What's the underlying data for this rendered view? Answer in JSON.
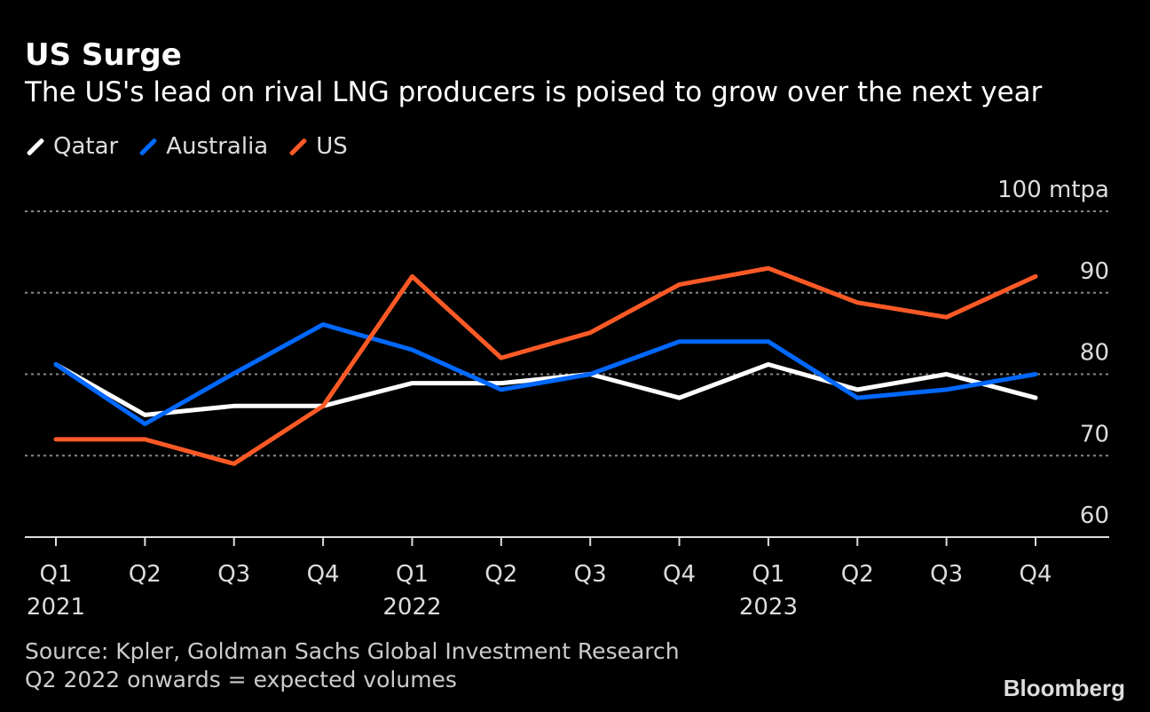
{
  "chart_data": {
    "type": "line",
    "title": "US Surge",
    "subtitle": "The US's lead on rival LNG producers is poised to grow over the next year",
    "x": [
      "Q1",
      "Q2",
      "Q3",
      "Q4",
      "Q1",
      "Q2",
      "Q3",
      "Q4",
      "Q1",
      "Q2",
      "Q3",
      "Q4"
    ],
    "year_labels": {
      "0": "2021",
      "4": "2022",
      "8": "2023"
    },
    "yticks": [
      60,
      70,
      80,
      90,
      100
    ],
    "yunit": "mtpa",
    "ylim": [
      60,
      100
    ],
    "grid": true,
    "legend_placement": "top-left",
    "series": [
      {
        "name": "Qatar",
        "color": "#ffffff",
        "values": [
          81.2,
          75.0,
          76.1,
          76.1,
          78.9,
          78.9,
          80.0,
          77.1,
          81.2,
          78.1,
          80.0,
          77.1
        ]
      },
      {
        "name": "Australia",
        "color": "#0068ff",
        "values": [
          81.2,
          73.9,
          80.1,
          86.1,
          83.0,
          78.1,
          80.0,
          84.0,
          84.0,
          77.1,
          78.1,
          80.0
        ]
      },
      {
        "name": "US",
        "color": "#ff5a26",
        "values": [
          72.0,
          72.0,
          69.0,
          76.1,
          92.0,
          82.0,
          85.1,
          91.0,
          93.0,
          88.8,
          87.0,
          92.0
        ]
      }
    ]
  },
  "footer": {
    "source": "Source: Kpler, Goldman Sachs Global Investment Research",
    "note": "Q2 2022 onwards = expected volumes",
    "logo": "Bloomberg"
  }
}
